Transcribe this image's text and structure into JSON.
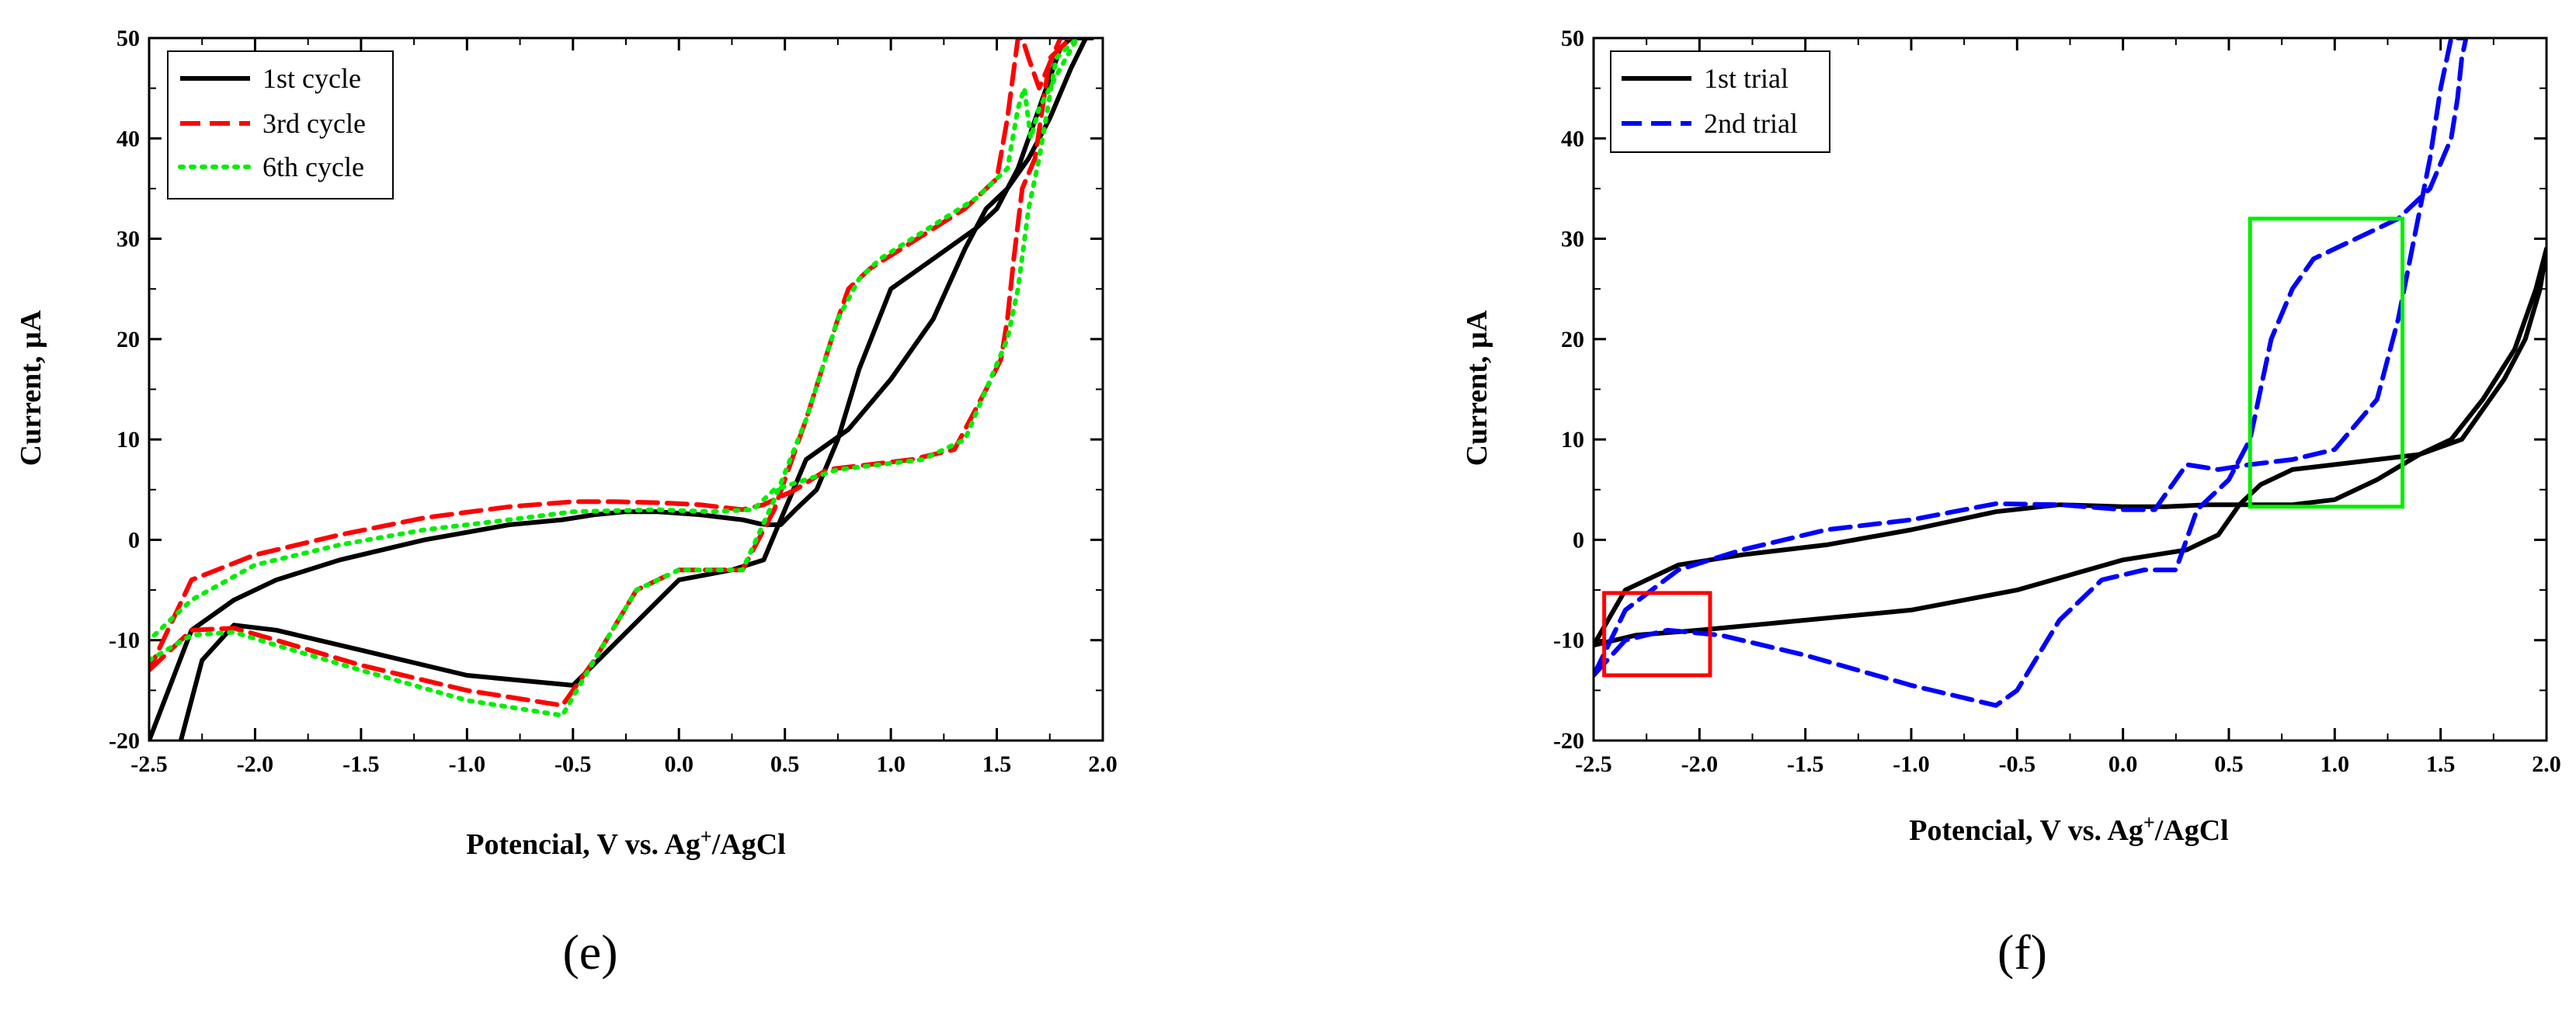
{
  "chart_data": [
    {
      "panel_label": "(e)",
      "type": "line",
      "title": "",
      "xlabel": "Potencial, V vs. Ag+/AgCl",
      "xlabel_parts": {
        "pre": "Potencial, V vs. Ag",
        "sup": "+",
        "post": "/AgCl"
      },
      "ylabel": "Current, µA",
      "xlim": [
        -2.5,
        2.0
      ],
      "ylim": [
        -20,
        50
      ],
      "xticks": [
        "-2.5",
        "-2.0",
        "-1.5",
        "-1.0",
        "-0.5",
        "0.0",
        "0.5",
        "1.0",
        "1.5",
        "2.0"
      ],
      "yticks": [
        "-20",
        "-10",
        "0",
        "10",
        "20",
        "30",
        "40",
        "50"
      ],
      "legend_position": "top-left",
      "series": [
        {
          "name": "1st cycle",
          "color": "#000000",
          "dash": "solid",
          "x": [
            -2.35,
            -2.25,
            -2.1,
            -1.9,
            -1.5,
            -1.0,
            -0.5,
            0.0,
            0.25,
            0.4,
            0.5,
            0.6,
            0.8,
            1.0,
            1.2,
            1.35,
            1.45,
            1.55,
            1.6,
            1.65,
            1.7,
            1.75,
            1.8,
            1.85,
            1.9,
            1.95,
            1.92,
            1.85,
            1.75,
            1.65,
            1.55,
            1.5,
            1.4,
            1.2,
            1.0,
            0.85,
            0.75,
            0.65,
            0.55,
            0.48,
            0.42,
            0.38,
            0.3,
            0.1,
            -0.1,
            -0.25,
            -0.4,
            -0.55,
            -0.8,
            -1.2,
            -1.6,
            -1.9,
            -2.1,
            -2.3,
            -2.5
          ],
          "y": [
            -20,
            -12,
            -8.5,
            -9,
            -11,
            -13.5,
            -14.5,
            -4,
            -3,
            -2,
            3,
            8,
            11,
            16,
            22,
            29,
            33,
            35,
            37,
            40,
            43,
            46,
            49,
            50,
            50,
            50,
            50,
            47,
            42,
            38,
            35,
            33,
            31,
            28,
            25,
            17,
            10,
            5,
            3,
            1.5,
            1.5,
            1.6,
            2,
            2.5,
            2.8,
            2.8,
            2.5,
            2,
            1.5,
            0,
            -2,
            -4,
            -6,
            -9,
            -20
          ]
        },
        {
          "name": "3rd cycle",
          "color": "#ff0000",
          "dash": "dashed",
          "x": [
            -2.5,
            -2.3,
            -2.1,
            -1.9,
            -1.5,
            -1.0,
            -0.55,
            -0.4,
            -0.2,
            0.0,
            0.3,
            0.45,
            0.6,
            0.75,
            0.8,
            0.9,
            1.05,
            1.2,
            1.35,
            1.5,
            1.55,
            1.6,
            1.62,
            1.65,
            1.7,
            1.8,
            1.85,
            1.75,
            1.68,
            1.62,
            1.58,
            1.55,
            1.52,
            1.45,
            1.4,
            1.3,
            1.1,
            0.9,
            0.7,
            0.55,
            0.45,
            0.4,
            0.3,
            0.1,
            -0.1,
            -0.3,
            -0.5,
            -0.8,
            -1.2,
            -1.6,
            -2.0,
            -2.3,
            -2.5
          ],
          "y": [
            -13,
            -9,
            -8.8,
            -10,
            -12.5,
            -15,
            -16.5,
            -12,
            -5,
            -3,
            -3,
            3,
            12,
            22,
            25,
            27,
            29,
            31,
            33,
            36,
            42,
            50,
            50,
            48,
            45,
            50,
            50,
            48,
            38,
            35,
            28,
            22,
            18,
            15,
            13,
            9,
            8,
            7.5,
            7,
            5,
            4,
            3.5,
            3,
            3.5,
            3.7,
            3.8,
            3.8,
            3.3,
            2.2,
            0.5,
            -1.5,
            -4,
            -13
          ]
        },
        {
          "name": "6th cycle",
          "color": "#00ee00",
          "dash": "dotted",
          "x": [
            -2.5,
            -2.3,
            -2.1,
            -1.9,
            -1.5,
            -1.0,
            -0.55,
            -0.4,
            -0.2,
            0.0,
            0.3,
            0.45,
            0.6,
            0.75,
            0.85,
            0.95,
            1.1,
            1.25,
            1.4,
            1.55,
            1.6,
            1.63,
            1.66,
            1.7,
            1.8,
            1.88,
            1.78,
            1.7,
            1.65,
            1.6,
            1.55,
            1.45,
            1.35,
            1.15,
            0.95,
            0.75,
            0.6,
            0.45,
            0.35,
            0.15,
            -0.1,
            -0.3,
            -0.5,
            -0.8,
            -1.2,
            -1.6,
            -2.0,
            -2.3,
            -2.5
          ],
          "y": [
            -12,
            -9.5,
            -9.2,
            -10.5,
            -13,
            -16,
            -17.5,
            -12,
            -5,
            -3,
            -3,
            4,
            12,
            22,
            26,
            28,
            30,
            32,
            34,
            37,
            43,
            45,
            40,
            43,
            47,
            50,
            48,
            38,
            33,
            25,
            20,
            15,
            10,
            8,
            7.5,
            7,
            6,
            5,
            3,
            2.8,
            3,
            2.9,
            2.8,
            2,
            1,
            -0.5,
            -2.5,
            -6,
            -10
          ]
        }
      ]
    },
    {
      "panel_label": "(f)",
      "type": "line",
      "title": "",
      "xlabel": "Potencial, V vs. Ag+/AgCl",
      "xlabel_parts": {
        "pre": "Potencial, V vs. Ag",
        "sup": "+",
        "post": "/AgCl"
      },
      "ylabel": "Current, µA",
      "xlim": [
        -2.5,
        2.0
      ],
      "ylim": [
        -20,
        50
      ],
      "xticks": [
        "-2.5",
        "-2.0",
        "-1.5",
        "-1.0",
        "-0.5",
        "0.0",
        "0.5",
        "1.0",
        "1.5",
        "2.0"
      ],
      "yticks": [
        "-20",
        "-10",
        "0",
        "10",
        "20",
        "30",
        "40",
        "50"
      ],
      "legend_position": "top-left",
      "series": [
        {
          "name": "1st trial",
          "color": "#000000",
          "dash": "solid",
          "x": [
            -2.5,
            -2.3,
            -2.0,
            -1.5,
            -1.0,
            -0.5,
            0.0,
            0.3,
            0.45,
            0.55,
            0.65,
            0.8,
            1.0,
            1.2,
            1.4,
            1.6,
            1.8,
            1.9,
            1.97,
            2.0,
            1.95,
            1.85,
            1.7,
            1.55,
            1.4,
            1.2,
            1.0,
            0.8,
            0.6,
            0.4,
            0.2,
            0.0,
            -0.3,
            -0.6,
            -1.0,
            -1.4,
            -1.8,
            -2.1,
            -2.35,
            -2.5
          ],
          "y": [
            -10.5,
            -9.5,
            -9,
            -8,
            -7,
            -5,
            -2,
            -1,
            0.5,
            3.5,
            5.5,
            7,
            7.5,
            8,
            8.5,
            10,
            16,
            20,
            25,
            29,
            25,
            19,
            14,
            10,
            8.5,
            6,
            4,
            3.5,
            3.5,
            3.5,
            3.3,
            3.3,
            3.5,
            2.8,
            1,
            -0.5,
            -1.5,
            -2.5,
            -5,
            -10.5
          ]
        },
        {
          "name": "2nd trial",
          "color": "#0000ff",
          "dash": "dashed",
          "x": [
            -2.5,
            -2.35,
            -2.15,
            -1.9,
            -1.5,
            -1.0,
            -0.6,
            -0.5,
            -0.3,
            -0.1,
            0.1,
            0.25,
            0.35,
            0.5,
            0.6,
            0.7,
            0.8,
            0.9,
            1.1,
            1.3,
            1.45,
            1.55,
            1.58,
            1.6,
            1.62,
            1.6,
            1.58,
            1.55,
            1.5,
            1.45,
            1.3,
            1.2,
            1.0,
            0.8,
            0.6,
            0.45,
            0.3,
            0.15,
            0.0,
            -0.3,
            -0.6,
            -1.0,
            -1.4,
            -1.8,
            -2.1,
            -2.35,
            -2.5
          ],
          "y": [
            -13.5,
            -10,
            -9,
            -9.5,
            -11.5,
            -14.5,
            -16.5,
            -15,
            -8,
            -4,
            -3,
            -3,
            3,
            6,
            10,
            20,
            25,
            28,
            30,
            32,
            35,
            40,
            44,
            48,
            50,
            50,
            50,
            50,
            45,
            38,
            22,
            14,
            9,
            8,
            7.5,
            7,
            7.5,
            3,
            3,
            3.5,
            3.6,
            2,
            1,
            -1,
            -3,
            -7,
            -13.5
          ]
        }
      ],
      "annotations": [
        {
          "type": "rectangle",
          "color": "#ff0000",
          "x_range": [
            -2.45,
            -1.95
          ],
          "y_range": [
            -13.5,
            -5.3
          ]
        },
        {
          "type": "rectangle",
          "color": "#00ee00",
          "x_range": [
            0.6,
            1.32
          ],
          "y_range": [
            3.3,
            32.0
          ]
        }
      ]
    }
  ]
}
